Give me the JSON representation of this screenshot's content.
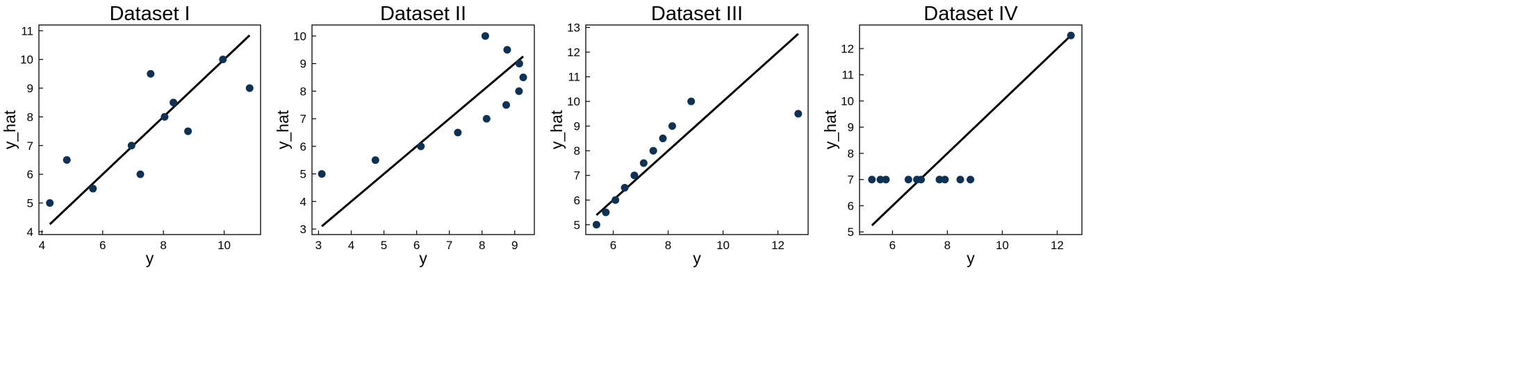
{
  "chart_data": [
    {
      "type": "scatter",
      "title": "Dataset I",
      "xlabel": "y",
      "ylabel": "y_hat",
      "xlim": [
        3.9,
        11.2
      ],
      "ylim": [
        3.9,
        11.2
      ],
      "xticks": [
        4,
        6,
        8,
        10
      ],
      "yticks": [
        4,
        5,
        6,
        7,
        8,
        9,
        10,
        11
      ],
      "points": [
        {
          "x": 4.26,
          "y": 5.0
        },
        {
          "x": 4.82,
          "y": 6.5
        },
        {
          "x": 5.68,
          "y": 5.5
        },
        {
          "x": 6.95,
          "y": 7.0
        },
        {
          "x": 7.24,
          "y": 6.0
        },
        {
          "x": 7.58,
          "y": 9.5
        },
        {
          "x": 8.04,
          "y": 8.0
        },
        {
          "x": 8.33,
          "y": 8.5
        },
        {
          "x": 8.81,
          "y": 7.5
        },
        {
          "x": 9.96,
          "y": 10.0
        },
        {
          "x": 10.84,
          "y": 9.0
        }
      ],
      "line": {
        "x": [
          4.26,
          10.84
        ],
        "y": [
          4.26,
          10.84
        ]
      }
    },
    {
      "type": "scatter",
      "title": "Dataset II",
      "xlabel": "y",
      "ylabel": "y_hat",
      "xlim": [
        2.8,
        9.6
      ],
      "ylim": [
        2.8,
        10.4
      ],
      "xticks": [
        3,
        4,
        5,
        6,
        7,
        8,
        9
      ],
      "yticks": [
        3,
        4,
        5,
        6,
        7,
        8,
        9,
        10
      ],
      "points": [
        {
          "x": 3.1,
          "y": 5.0
        },
        {
          "x": 4.74,
          "y": 5.5
        },
        {
          "x": 6.13,
          "y": 6.0
        },
        {
          "x": 7.26,
          "y": 6.5
        },
        {
          "x": 8.14,
          "y": 7.0
        },
        {
          "x": 8.74,
          "y": 7.5
        },
        {
          "x": 9.13,
          "y": 8.0
        },
        {
          "x": 9.26,
          "y": 8.5
        },
        {
          "x": 9.14,
          "y": 9.0
        },
        {
          "x": 8.77,
          "y": 9.5
        },
        {
          "x": 8.1,
          "y": 10.0
        }
      ],
      "line": {
        "x": [
          3.1,
          9.26
        ],
        "y": [
          3.1,
          9.26
        ]
      }
    },
    {
      "type": "scatter",
      "title": "Dataset III",
      "xlabel": "y",
      "ylabel": "y_hat",
      "xlim": [
        5.0,
        13.1
      ],
      "ylim": [
        4.6,
        13.1
      ],
      "xticks": [
        6,
        8,
        10,
        12
      ],
      "yticks": [
        5,
        6,
        7,
        8,
        9,
        10,
        11,
        12,
        13
      ],
      "points": [
        {
          "x": 5.39,
          "y": 5.0
        },
        {
          "x": 5.73,
          "y": 5.5
        },
        {
          "x": 6.08,
          "y": 6.0
        },
        {
          "x": 6.42,
          "y": 6.5
        },
        {
          "x": 6.77,
          "y": 7.0
        },
        {
          "x": 7.11,
          "y": 7.5
        },
        {
          "x": 7.46,
          "y": 8.0
        },
        {
          "x": 7.81,
          "y": 8.5
        },
        {
          "x": 8.15,
          "y": 9.0
        },
        {
          "x": 8.84,
          "y": 10.0
        },
        {
          "x": 12.74,
          "y": 9.5
        }
      ],
      "line": {
        "x": [
          5.39,
          12.74
        ],
        "y": [
          5.39,
          12.74
        ]
      }
    },
    {
      "type": "scatter",
      "title": "Dataset IV",
      "xlabel": "y",
      "ylabel": "y_hat",
      "xlim": [
        4.8,
        12.9
      ],
      "ylim": [
        4.9,
        12.9
      ],
      "xticks": [
        6,
        8,
        10,
        12
      ],
      "yticks": [
        5,
        6,
        7,
        8,
        9,
        10,
        11,
        12
      ],
      "points": [
        {
          "x": 5.25,
          "y": 7.0
        },
        {
          "x": 5.56,
          "y": 7.0
        },
        {
          "x": 5.76,
          "y": 7.0
        },
        {
          "x": 6.58,
          "y": 7.0
        },
        {
          "x": 6.89,
          "y": 7.0
        },
        {
          "x": 7.04,
          "y": 7.0
        },
        {
          "x": 7.71,
          "y": 7.0
        },
        {
          "x": 7.91,
          "y": 7.0
        },
        {
          "x": 8.47,
          "y": 7.0
        },
        {
          "x": 8.84,
          "y": 7.0
        },
        {
          "x": 12.5,
          "y": 12.5
        }
      ],
      "line": {
        "x": [
          5.25,
          12.5
        ],
        "y": [
          5.25,
          12.5
        ]
      }
    }
  ],
  "colors": {
    "point": "#0d3256",
    "line": "#000000",
    "axis": "#000000"
  }
}
